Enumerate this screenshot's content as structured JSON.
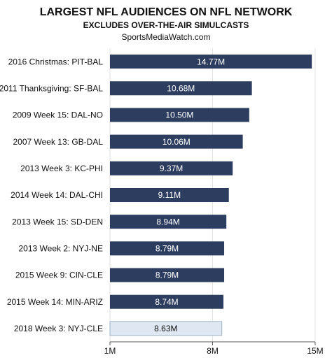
{
  "chart_data": {
    "type": "barh",
    "title": "LARGEST NFL AUDIENCES ON NFL NETWORK",
    "subtitle": "EXCLUDES OVER-THE-AIR SIMULCASTS",
    "source": "SportsMediaWatch.com",
    "categories": [
      "2016 Christmas: PIT-BAL",
      "2011 Thanksgiving: SF-BAL",
      "2009 Week 15: DAL-NO",
      "2007 Week 13: GB-DAL",
      "2013 Week 3: KC-PHI",
      "2014 Week 14: DAL-CHI",
      "2013 Week 15: SD-DEN",
      "2013 Week 2: NYJ-NE",
      "2015 Week 9: CIN-CLE",
      "2015 Week 14: MIN-ARIZ",
      "2018 Week 3: NYJ-CLE"
    ],
    "values": [
      14.77,
      10.68,
      10.5,
      10.06,
      9.37,
      9.11,
      8.94,
      8.79,
      8.79,
      8.74,
      8.63
    ],
    "value_labels": [
      "14.77M",
      "10.68M",
      "10.50M",
      "10.06M",
      "9.37M",
      "9.11M",
      "8.94M",
      "8.79M",
      "8.79M",
      "8.74M",
      "8.63M"
    ],
    "colors": [
      "#2c3d5f",
      "#2c3d5f",
      "#2c3d5f",
      "#2c3d5f",
      "#2c3d5f",
      "#2c3d5f",
      "#2c3d5f",
      "#2c3d5f",
      "#2c3d5f",
      "#2c3d5f",
      "#dfe8f2"
    ],
    "xlim": [
      1,
      15
    ],
    "xticks": [
      {
        "value": 1,
        "label": "1M"
      },
      {
        "value": 8,
        "label": "8M"
      },
      {
        "value": 15,
        "label": "15M"
      }
    ],
    "grid": true
  }
}
